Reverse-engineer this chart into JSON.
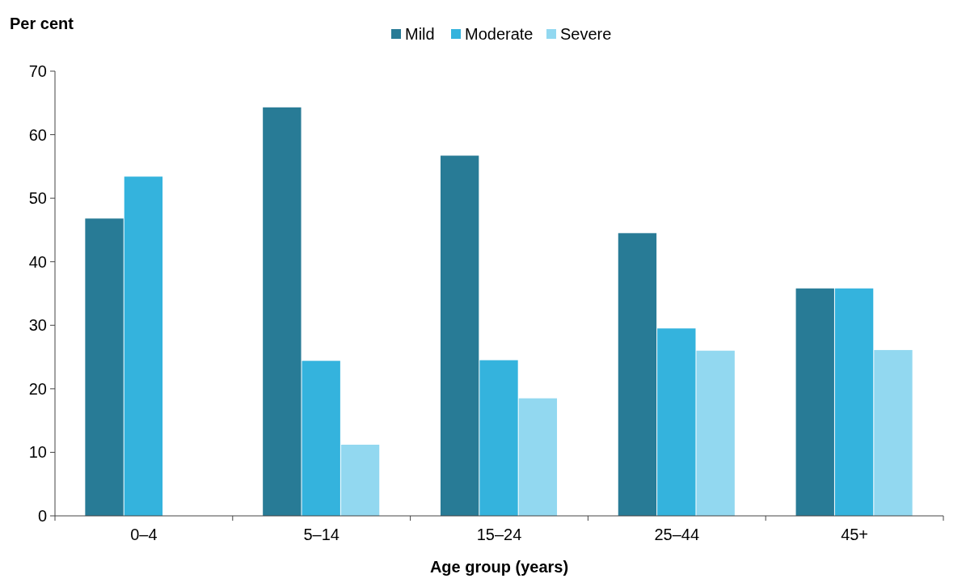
{
  "chart_data": {
    "type": "bar",
    "xlabel": "Age group (years)",
    "ylabel": "Per cent",
    "categories": [
      "0–4",
      "5–14",
      "15–24",
      "25–44",
      "45+"
    ],
    "series": [
      {
        "name": "Mild",
        "color": "#287b96",
        "values": [
          46.8,
          64.3,
          56.7,
          44.5,
          35.8
        ]
      },
      {
        "name": "Moderate",
        "color": "#34b3dd",
        "values": [
          53.4,
          24.4,
          24.5,
          29.5,
          35.8
        ]
      },
      {
        "name": "Severe",
        "color": "#92d8f0",
        "values": [
          null,
          11.2,
          18.5,
          26.0,
          26.1
        ]
      }
    ],
    "ylim": [
      0,
      70
    ],
    "yticks": [
      0,
      10,
      20,
      30,
      40,
      50,
      60,
      70
    ],
    "grid": false,
    "legend": "top"
  }
}
